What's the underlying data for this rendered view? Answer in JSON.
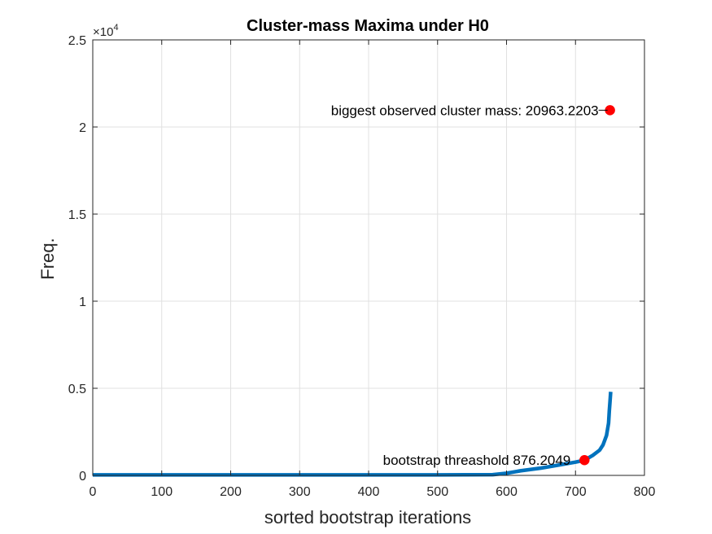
{
  "chart_data": {
    "type": "line",
    "title": "Cluster-mass Maxima under H0",
    "xlabel": "sorted bootstrap iterations",
    "ylabel": "Freq.",
    "xlim": [
      0,
      800
    ],
    "ylim": [
      0,
      25000
    ],
    "y_exponent_label": "×10",
    "y_exponent_power": "4",
    "x_ticks": [
      0,
      100,
      200,
      300,
      400,
      500,
      600,
      700,
      800
    ],
    "x_tick_labels": [
      "0",
      "100",
      "200",
      "300",
      "400",
      "500",
      "600",
      "700",
      "800"
    ],
    "y_ticks": [
      0,
      5000,
      10000,
      15000,
      20000,
      25000
    ],
    "y_tick_labels": [
      "0",
      "0.5",
      "1",
      "1.5",
      "2",
      "2.5"
    ],
    "grid": true,
    "series": [
      {
        "color": "#0072BD",
        "x": [
          0,
          100,
          200,
          300,
          400,
          500,
          580,
          600,
          620,
          650,
          680,
          700,
          713,
          725,
          735,
          740,
          745,
          748,
          749,
          750,
          751
        ],
        "y": [
          30,
          30,
          30,
          30,
          30,
          30,
          40,
          120,
          260,
          420,
          620,
          760,
          876,
          1150,
          1450,
          1750,
          2300,
          3000,
          3700,
          4200,
          4800
        ]
      }
    ],
    "markers": [
      {
        "x": 713,
        "y": 876.2049,
        "color": "#FF0000"
      },
      {
        "x": 750,
        "y": 20963.2203,
        "color": "#FF0000"
      }
    ],
    "annotations": [
      {
        "text": "bootstrap threashold 876.2049",
        "x": 713,
        "y": 876.2049
      },
      {
        "text": "biggest observed cluster mass: 20963.2203",
        "x": 750,
        "y": 20963.2203
      }
    ]
  }
}
